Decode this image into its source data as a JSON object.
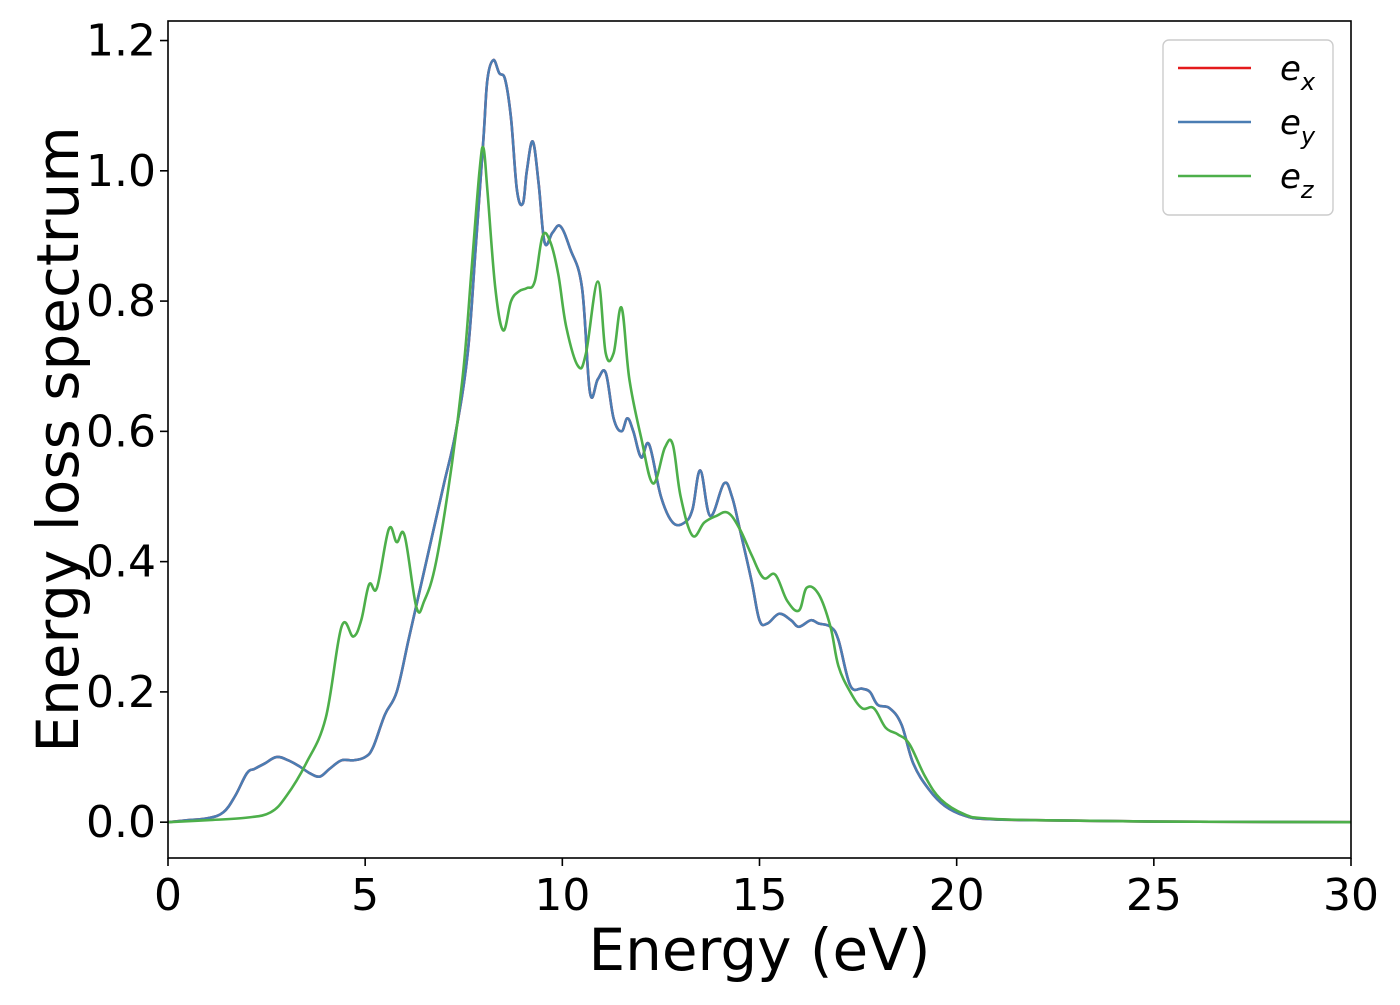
{
  "chart_data": {
    "type": "line",
    "title": "",
    "xlabel": "Energy (eV)",
    "ylabel": "Energy loss spectrum",
    "xlim": [
      0,
      30
    ],
    "ylim": [
      -0.055,
      1.23
    ],
    "xticks": [
      0,
      5,
      10,
      15,
      20,
      25,
      30
    ],
    "xtick_labels": [
      "0",
      "5",
      "10",
      "15",
      "20",
      "25",
      "30"
    ],
    "yticks": [
      0.0,
      0.2,
      0.4,
      0.6,
      0.8,
      1.0,
      1.2
    ],
    "ytick_labels": [
      "0.0",
      "0.2",
      "0.4",
      "0.6",
      "0.8",
      "1.0",
      "1.2"
    ],
    "grid": false,
    "legend_position": "top-right",
    "series": [
      {
        "name": "e",
        "subscript": "x",
        "color": "#e41a1c",
        "x": [
          0,
          0.5,
          1.0,
          1.4,
          1.7,
          2.0,
          2.2,
          2.45,
          2.75,
          3.05,
          3.35,
          3.6,
          3.85,
          4.1,
          4.4,
          4.7,
          5.0,
          5.2,
          5.5,
          5.8,
          6.1,
          6.4,
          6.7,
          7.0,
          7.3,
          7.6,
          7.8,
          8.0,
          8.1,
          8.25,
          8.4,
          8.55,
          8.7,
          8.85,
          9.0,
          9.1,
          9.25,
          9.4,
          9.55,
          9.75,
          9.95,
          10.2,
          10.5,
          10.7,
          10.9,
          11.1,
          11.3,
          11.5,
          11.65,
          11.8,
          12.0,
          12.2,
          12.5,
          12.8,
          13.1,
          13.3,
          13.5,
          13.75,
          14.1,
          14.3,
          14.5,
          14.8,
          15.0,
          15.2,
          15.5,
          15.8,
          16.0,
          16.3,
          16.5,
          16.8,
          17.0,
          17.3,
          17.6,
          17.8,
          18.0,
          18.3,
          18.6,
          18.9,
          19.3,
          19.7,
          20.2,
          20.7,
          22,
          25,
          30
        ],
        "y": [
          0.0,
          0.003,
          0.006,
          0.015,
          0.04,
          0.075,
          0.082,
          0.09,
          0.1,
          0.095,
          0.085,
          0.075,
          0.07,
          0.082,
          0.095,
          0.095,
          0.1,
          0.115,
          0.165,
          0.2,
          0.28,
          0.36,
          0.44,
          0.52,
          0.6,
          0.72,
          0.88,
          1.05,
          1.14,
          1.17,
          1.15,
          1.14,
          1.08,
          0.97,
          0.95,
          1.0,
          1.045,
          0.98,
          0.89,
          0.905,
          0.915,
          0.88,
          0.82,
          0.66,
          0.68,
          0.69,
          0.62,
          0.6,
          0.62,
          0.6,
          0.56,
          0.58,
          0.5,
          0.46,
          0.46,
          0.48,
          0.54,
          0.47,
          0.52,
          0.5,
          0.45,
          0.37,
          0.31,
          0.305,
          0.32,
          0.31,
          0.3,
          0.31,
          0.305,
          0.3,
          0.28,
          0.21,
          0.205,
          0.2,
          0.18,
          0.175,
          0.15,
          0.09,
          0.05,
          0.025,
          0.01,
          0.005,
          0.003,
          0.001,
          0.0
        ]
      },
      {
        "name": "e",
        "subscript": "y",
        "color": "#4a7db3",
        "x": [
          0,
          0.5,
          1.0,
          1.4,
          1.7,
          2.0,
          2.2,
          2.45,
          2.75,
          3.05,
          3.35,
          3.6,
          3.85,
          4.1,
          4.4,
          4.7,
          5.0,
          5.2,
          5.5,
          5.8,
          6.1,
          6.4,
          6.7,
          7.0,
          7.3,
          7.6,
          7.8,
          8.0,
          8.1,
          8.25,
          8.4,
          8.55,
          8.7,
          8.85,
          9.0,
          9.1,
          9.25,
          9.4,
          9.55,
          9.75,
          9.95,
          10.2,
          10.5,
          10.7,
          10.9,
          11.1,
          11.3,
          11.5,
          11.65,
          11.8,
          12.0,
          12.2,
          12.5,
          12.8,
          13.1,
          13.3,
          13.5,
          13.75,
          14.1,
          14.3,
          14.5,
          14.8,
          15.0,
          15.2,
          15.5,
          15.8,
          16.0,
          16.3,
          16.5,
          16.8,
          17.0,
          17.3,
          17.6,
          17.8,
          18.0,
          18.3,
          18.6,
          18.9,
          19.3,
          19.7,
          20.2,
          20.7,
          22,
          25,
          30
        ],
        "y": [
          0.0,
          0.003,
          0.006,
          0.015,
          0.04,
          0.075,
          0.082,
          0.09,
          0.1,
          0.095,
          0.085,
          0.075,
          0.07,
          0.082,
          0.095,
          0.095,
          0.1,
          0.115,
          0.165,
          0.2,
          0.28,
          0.36,
          0.44,
          0.52,
          0.6,
          0.72,
          0.88,
          1.05,
          1.14,
          1.17,
          1.15,
          1.14,
          1.08,
          0.97,
          0.95,
          1.0,
          1.045,
          0.98,
          0.89,
          0.905,
          0.915,
          0.88,
          0.82,
          0.66,
          0.68,
          0.69,
          0.62,
          0.6,
          0.62,
          0.6,
          0.56,
          0.58,
          0.5,
          0.46,
          0.46,
          0.48,
          0.54,
          0.47,
          0.52,
          0.5,
          0.45,
          0.37,
          0.31,
          0.305,
          0.32,
          0.31,
          0.3,
          0.31,
          0.305,
          0.3,
          0.28,
          0.21,
          0.205,
          0.2,
          0.18,
          0.175,
          0.15,
          0.09,
          0.05,
          0.025,
          0.01,
          0.005,
          0.003,
          0.001,
          0.0
        ]
      },
      {
        "name": "e",
        "subscript": "z",
        "color": "#4daf4a",
        "x": [
          0,
          1.0,
          2.0,
          2.6,
          3.0,
          3.5,
          4.0,
          4.4,
          4.7,
          4.9,
          5.1,
          5.3,
          5.6,
          5.8,
          6.0,
          6.3,
          6.5,
          6.8,
          7.2,
          7.5,
          7.7,
          7.9,
          8.0,
          8.1,
          8.3,
          8.5,
          8.7,
          8.9,
          9.1,
          9.3,
          9.5,
          9.7,
          9.9,
          10.1,
          10.4,
          10.6,
          10.9,
          11.1,
          11.3,
          11.5,
          11.7,
          12.0,
          12.3,
          12.6,
          12.8,
          13.0,
          13.3,
          13.6,
          13.9,
          14.2,
          14.5,
          14.8,
          15.1,
          15.4,
          15.7,
          16.0,
          16.2,
          16.5,
          16.8,
          17.0,
          17.3,
          17.6,
          17.9,
          18.2,
          18.5,
          18.8,
          19.2,
          19.6,
          20.2,
          20.7,
          22,
          25,
          30
        ],
        "y": [
          0.0,
          0.003,
          0.007,
          0.015,
          0.04,
          0.09,
          0.16,
          0.3,
          0.285,
          0.31,
          0.365,
          0.36,
          0.45,
          0.43,
          0.44,
          0.33,
          0.34,
          0.4,
          0.55,
          0.7,
          0.85,
          1.0,
          1.035,
          0.97,
          0.82,
          0.755,
          0.8,
          0.815,
          0.82,
          0.83,
          0.9,
          0.89,
          0.84,
          0.76,
          0.7,
          0.72,
          0.83,
          0.72,
          0.72,
          0.79,
          0.68,
          0.59,
          0.52,
          0.575,
          0.58,
          0.5,
          0.44,
          0.46,
          0.47,
          0.475,
          0.45,
          0.41,
          0.375,
          0.38,
          0.34,
          0.325,
          0.36,
          0.35,
          0.3,
          0.24,
          0.2,
          0.175,
          0.175,
          0.145,
          0.135,
          0.12,
          0.07,
          0.035,
          0.012,
          0.006,
          0.003,
          0.001,
          0.0
        ]
      }
    ]
  }
}
